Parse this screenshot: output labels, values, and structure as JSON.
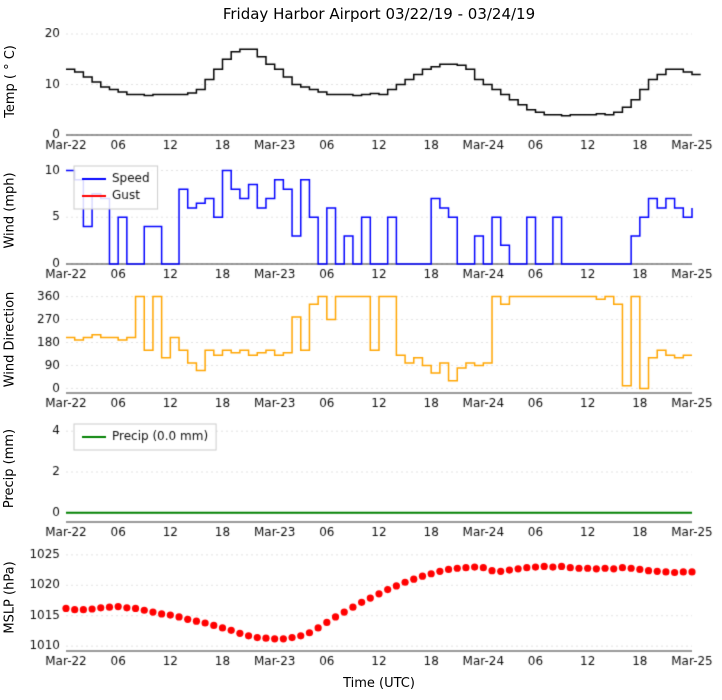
{
  "title": "Friday Harbor Airport 03/22/19 - 03/24/19",
  "x_axis": {
    "xlabel": "Time (UTC)",
    "range": [
      0,
      72
    ],
    "tick_positions": [
      0,
      6,
      12,
      18,
      24,
      30,
      36,
      42,
      48,
      54,
      60,
      66,
      72
    ],
    "tick_labels": [
      "Mar-22",
      "06",
      "12",
      "18",
      "Mar-23",
      "06",
      "12",
      "18",
      "Mar-24",
      "06",
      "12",
      "18",
      "Mar-25"
    ]
  },
  "chart_data": [
    {
      "type": "line",
      "style": "step",
      "ylabel": "Temp ( ° C)",
      "ylim": [
        0,
        20
      ],
      "yticks": [
        0,
        10,
        20
      ],
      "series": [
        {
          "name": "Temperature",
          "color": "#000000",
          "values": [
            13,
            12.5,
            11.5,
            10.5,
            9.5,
            9,
            8.5,
            8,
            8,
            7.8,
            8,
            8,
            8,
            8,
            8.3,
            9,
            11,
            13,
            15,
            16.5,
            17,
            17,
            15.5,
            14,
            13,
            11.5,
            10,
            9.5,
            9,
            8.5,
            8,
            8,
            8,
            7.8,
            8,
            8.2,
            8,
            9,
            10,
            11,
            12,
            13,
            13.5,
            14,
            14,
            13.8,
            13,
            11,
            10,
            9,
            8,
            7,
            6,
            5,
            4.5,
            4,
            4,
            3.8,
            4,
            4,
            4,
            4.2,
            4,
            4.5,
            5.5,
            7,
            9,
            11,
            12,
            13,
            13,
            12.5,
            12,
            12
          ]
        }
      ]
    },
    {
      "type": "line",
      "style": "step",
      "ylabel": "Wind (mph)",
      "ylim": [
        0,
        10.8
      ],
      "yticks": [
        0,
        5,
        10
      ],
      "legend": {
        "entries": [
          {
            "label": "Speed",
            "color": "#0000ff"
          },
          {
            "label": "Gust",
            "color": "#ff0000"
          }
        ]
      },
      "series": [
        {
          "name": "Speed",
          "color": "#0000ff",
          "values": [
            10,
            9,
            4,
            7.5,
            7,
            0,
            5,
            0,
            0,
            4,
            4,
            0,
            0,
            8,
            6,
            6.5,
            7,
            5,
            10,
            8,
            7,
            8.5,
            6,
            7,
            9,
            8,
            3,
            9,
            5,
            0,
            6,
            0,
            3,
            0,
            5,
            0,
            0,
            5,
            0,
            0,
            0,
            0,
            7,
            6,
            5,
            0,
            0,
            3,
            0,
            5,
            2,
            0,
            0,
            5,
            0,
            0,
            5,
            0,
            0,
            0,
            0,
            0,
            0,
            0,
            0,
            3,
            5,
            7,
            6,
            7,
            6,
            5,
            6
          ]
        },
        {
          "name": "Gust",
          "color": "#ff0000",
          "values": []
        }
      ]
    },
    {
      "type": "line",
      "style": "step",
      "ylabel": "Wind Direction",
      "ylim": [
        -18,
        378
      ],
      "yticks": [
        0,
        90,
        180,
        270,
        360
      ],
      "series": [
        {
          "name": "Direction",
          "color": "#ffa500",
          "values": [
            200,
            190,
            200,
            210,
            200,
            200,
            190,
            200,
            360,
            150,
            360,
            120,
            200,
            150,
            100,
            70,
            150,
            130,
            150,
            140,
            150,
            130,
            140,
            150,
            130,
            140,
            280,
            150,
            330,
            360,
            270,
            360,
            360,
            360,
            360,
            150,
            360,
            360,
            130,
            100,
            120,
            90,
            60,
            100,
            30,
            80,
            100,
            90,
            100,
            360,
            330,
            360,
            360,
            360,
            360,
            360,
            360,
            360,
            360,
            360,
            360,
            350,
            360,
            330,
            10,
            360,
            0,
            120,
            150,
            130,
            120,
            130,
            130
          ]
        }
      ]
    },
    {
      "type": "line",
      "style": "line",
      "ylabel": "Precip (mm)",
      "ylim": [
        -0.45,
        4.5
      ],
      "yticks": [
        0,
        2,
        4
      ],
      "legend": {
        "entries": [
          {
            "label": "Precip (0.0 mm)",
            "color": "#008000"
          }
        ]
      },
      "series": [
        {
          "name": "Precip",
          "color": "#008000",
          "values": [
            0,
            0,
            0,
            0,
            0,
            0,
            0,
            0,
            0,
            0,
            0,
            0,
            0,
            0,
            0,
            0,
            0,
            0,
            0,
            0,
            0,
            0,
            0,
            0,
            0,
            0,
            0,
            0,
            0,
            0,
            0,
            0,
            0,
            0,
            0,
            0,
            0,
            0,
            0,
            0,
            0,
            0,
            0,
            0,
            0,
            0,
            0,
            0,
            0,
            0,
            0,
            0,
            0,
            0,
            0,
            0,
            0,
            0,
            0,
            0,
            0,
            0,
            0,
            0,
            0,
            0,
            0,
            0,
            0,
            0,
            0,
            0,
            0
          ]
        }
      ]
    },
    {
      "type": "scatter",
      "style": "scatter",
      "ylabel": "MSLP (hPa)",
      "ylim": [
        1009.2,
        1025.8
      ],
      "yticks": [
        1010,
        1015,
        1020,
        1025
      ],
      "series": [
        {
          "name": "MSLP",
          "color": "#ff0000",
          "values": [
            1016.2,
            1016.0,
            1016.0,
            1016.1,
            1016.3,
            1016.4,
            1016.5,
            1016.3,
            1016.2,
            1015.9,
            1015.6,
            1015.3,
            1015.1,
            1014.8,
            1014.4,
            1014.1,
            1013.8,
            1013.4,
            1013.0,
            1012.6,
            1012.1,
            1011.7,
            1011.4,
            1011.3,
            1011.2,
            1011.2,
            1011.4,
            1011.7,
            1012.2,
            1013.0,
            1013.9,
            1014.8,
            1015.6,
            1016.4,
            1017.2,
            1017.9,
            1018.6,
            1019.3,
            1019.9,
            1020.5,
            1021.0,
            1021.5,
            1021.9,
            1022.3,
            1022.6,
            1022.8,
            1022.9,
            1023.0,
            1022.9,
            1022.4,
            1022.3,
            1022.5,
            1022.7,
            1022.9,
            1023.0,
            1023.1,
            1023.0,
            1023.1,
            1022.9,
            1022.8,
            1022.8,
            1022.7,
            1022.8,
            1022.7,
            1022.9,
            1022.8,
            1022.6,
            1022.4,
            1022.3,
            1022.2,
            1022.1,
            1022.2,
            1022.2
          ]
        }
      ]
    }
  ]
}
